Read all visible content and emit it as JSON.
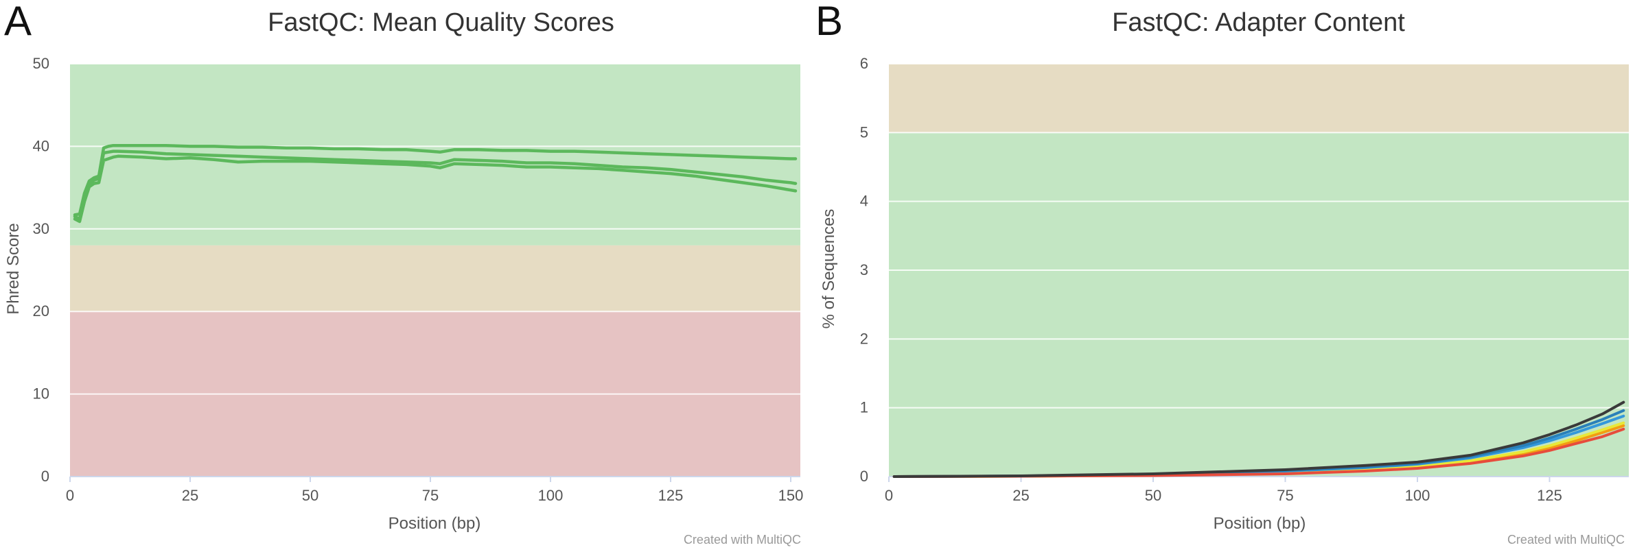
{
  "figure": {
    "panels": [
      {
        "letter": "A",
        "title": "FastQC: Mean Quality Scores",
        "credit": "Created with MultiQC"
      },
      {
        "letter": "B",
        "title": "FastQC: Adapter Content",
        "credit": "Created with MultiQC"
      }
    ]
  },
  "chart_data": [
    {
      "type": "line",
      "title": "FastQC: Mean Quality Scores",
      "xlabel": "Position (bp)",
      "ylabel": "Phred Score",
      "xlim": [
        0,
        152
      ],
      "ylim": [
        0,
        50
      ],
      "x_ticks": [
        0,
        25,
        50,
        75,
        100,
        125,
        150
      ],
      "y_ticks": [
        0,
        10,
        20,
        30,
        40,
        50
      ],
      "grid": true,
      "bands": [
        {
          "from": 28,
          "to": 50,
          "color": "#c3e6c3"
        },
        {
          "from": 20,
          "to": 28,
          "color": "#e6dcc3"
        },
        {
          "from": 0,
          "to": 20,
          "color": "#e6c3c3"
        }
      ],
      "series": [
        {
          "color": "#5cb85c",
          "x": [
            1,
            2,
            3,
            4,
            5,
            6,
            7,
            8,
            9,
            10,
            15,
            20,
            25,
            30,
            35,
            40,
            45,
            50,
            55,
            60,
            65,
            70,
            75,
            77,
            80,
            85,
            90,
            95,
            100,
            105,
            110,
            115,
            120,
            125,
            130,
            135,
            140,
            145,
            150,
            151
          ],
          "y": [
            31.7,
            31.8,
            34.3,
            35.8,
            36.2,
            36.4,
            39.8,
            40.0,
            40.1,
            40.1,
            40.1,
            40.1,
            40.0,
            40.0,
            39.9,
            39.9,
            39.8,
            39.8,
            39.7,
            39.7,
            39.6,
            39.6,
            39.4,
            39.3,
            39.6,
            39.6,
            39.5,
            39.5,
            39.4,
            39.4,
            39.3,
            39.2,
            39.1,
            39.0,
            38.9,
            38.8,
            38.7,
            38.6,
            38.5,
            38.5
          ]
        },
        {
          "color": "#5cb85c",
          "x": [
            1,
            2,
            3,
            4,
            5,
            6,
            7,
            8,
            9,
            10,
            15,
            20,
            25,
            30,
            35,
            40,
            45,
            50,
            55,
            60,
            65,
            70,
            75,
            77,
            80,
            85,
            90,
            95,
            100,
            105,
            110,
            115,
            120,
            125,
            130,
            135,
            140,
            145,
            150,
            151
          ],
          "y": [
            31.5,
            31.2,
            33.8,
            35.5,
            35.9,
            36.1,
            39.2,
            39.3,
            39.4,
            39.4,
            39.3,
            39.1,
            39.0,
            38.9,
            38.8,
            38.7,
            38.6,
            38.5,
            38.4,
            38.3,
            38.2,
            38.1,
            38.0,
            37.9,
            38.4,
            38.3,
            38.2,
            38.0,
            38.0,
            37.9,
            37.7,
            37.5,
            37.4,
            37.2,
            36.9,
            36.6,
            36.3,
            35.9,
            35.6,
            35.5
          ]
        },
        {
          "color": "#5cb85c",
          "x": [
            1,
            2,
            3,
            4,
            5,
            6,
            7,
            8,
            9,
            10,
            15,
            20,
            25,
            30,
            35,
            40,
            45,
            50,
            55,
            60,
            65,
            70,
            75,
            77,
            80,
            85,
            90,
            95,
            100,
            105,
            110,
            115,
            120,
            125,
            130,
            135,
            140,
            145,
            150,
            151
          ],
          "y": [
            31.2,
            30.9,
            33.3,
            35.1,
            35.5,
            35.6,
            38.3,
            38.5,
            38.7,
            38.8,
            38.7,
            38.5,
            38.6,
            38.4,
            38.1,
            38.2,
            38.2,
            38.2,
            38.1,
            38.0,
            37.9,
            37.8,
            37.6,
            37.4,
            37.9,
            37.8,
            37.7,
            37.5,
            37.5,
            37.4,
            37.3,
            37.1,
            36.9,
            36.7,
            36.4,
            36.0,
            35.6,
            35.2,
            34.7,
            34.6
          ]
        }
      ]
    },
    {
      "type": "line",
      "title": "FastQC: Adapter Content",
      "xlabel": "Position (bp)",
      "ylabel": "% of Sequences",
      "xlim": [
        0,
        140
      ],
      "ylim": [
        0,
        6
      ],
      "x_ticks": [
        0,
        25,
        50,
        75,
        100,
        125
      ],
      "y_ticks": [
        0,
        1,
        2,
        3,
        4,
        5,
        6
      ],
      "grid": true,
      "bands": [
        {
          "from": 5,
          "to": 6,
          "color": "#e6dcc3"
        },
        {
          "from": 0,
          "to": 5,
          "color": "#c3e6c3"
        }
      ],
      "series": [
        {
          "color": "#f39c12",
          "x": [
            1,
            25,
            50,
            75,
            90,
            100,
            110,
            120,
            125,
            130,
            135,
            139
          ],
          "y": [
            0,
            0.005,
            0.02,
            0.05,
            0.09,
            0.13,
            0.2,
            0.32,
            0.41,
            0.52,
            0.64,
            0.74
          ]
        },
        {
          "color": "#e8e838",
          "x": [
            1,
            25,
            50,
            75,
            90,
            100,
            110,
            120,
            125,
            130,
            135,
            139
          ],
          "y": [
            0,
            0.005,
            0.02,
            0.06,
            0.1,
            0.15,
            0.23,
            0.36,
            0.45,
            0.56,
            0.68,
            0.78
          ]
        },
        {
          "color": "#3498db",
          "x": [
            1,
            25,
            50,
            75,
            90,
            100,
            110,
            120,
            125,
            130,
            135,
            139
          ],
          "y": [
            0,
            0.008,
            0.03,
            0.08,
            0.13,
            0.18,
            0.27,
            0.42,
            0.52,
            0.64,
            0.77,
            0.88
          ]
        },
        {
          "color": "#2980b9",
          "x": [
            1,
            25,
            50,
            75,
            90,
            100,
            110,
            120,
            125,
            130,
            135,
            139
          ],
          "y": [
            0,
            0.008,
            0.035,
            0.09,
            0.14,
            0.19,
            0.29,
            0.45,
            0.56,
            0.69,
            0.83,
            0.96
          ]
        },
        {
          "color": "#e74c3c",
          "x": [
            1,
            25,
            50,
            75,
            90,
            100,
            110,
            120,
            125,
            130,
            135,
            139
          ],
          "y": [
            0,
            0.005,
            0.015,
            0.04,
            0.08,
            0.12,
            0.19,
            0.3,
            0.38,
            0.48,
            0.58,
            0.69
          ]
        },
        {
          "color": "#3a3a3a",
          "x": [
            1,
            25,
            50,
            75,
            90,
            100,
            110,
            120,
            125,
            130,
            135,
            139
          ],
          "y": [
            0,
            0.01,
            0.04,
            0.1,
            0.16,
            0.21,
            0.31,
            0.49,
            0.61,
            0.75,
            0.91,
            1.08
          ]
        }
      ]
    }
  ]
}
